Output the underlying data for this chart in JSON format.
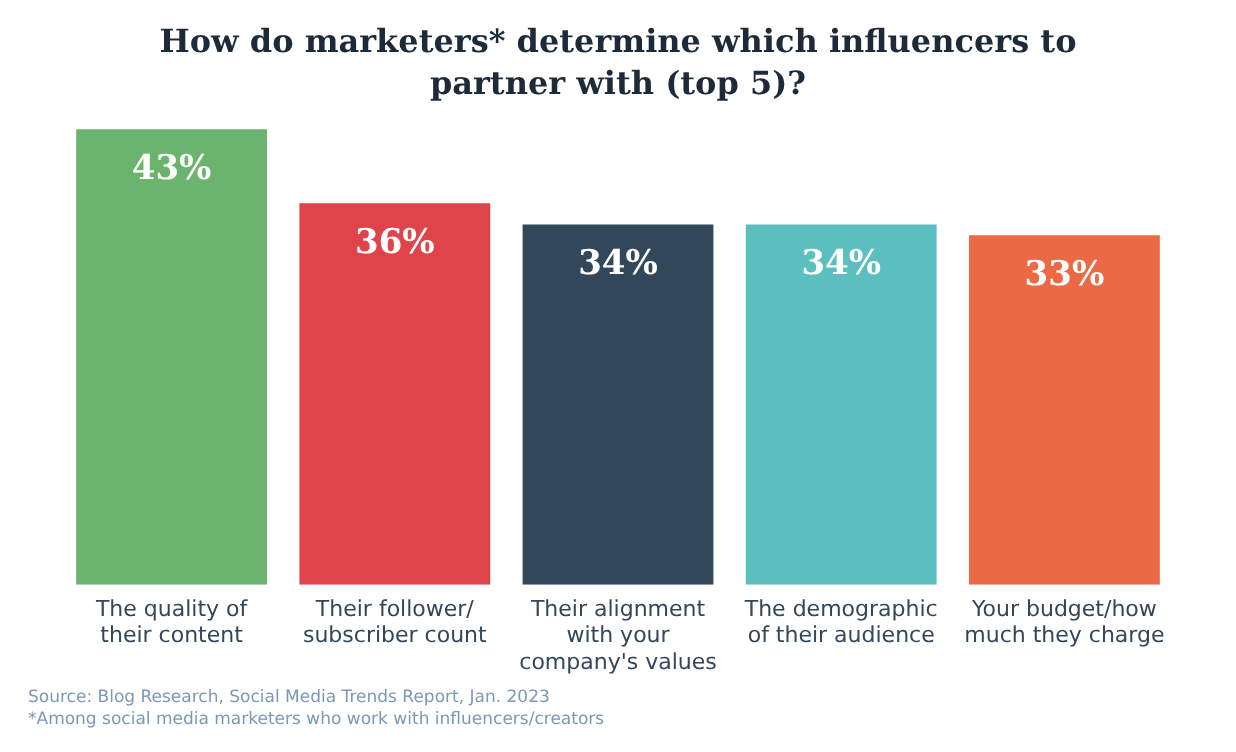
{
  "chart_data": {
    "type": "bar",
    "title": "How do marketers* determine which influencers to partner with (top 5)?",
    "categories": [
      "The quality of their content",
      "Their follower/subscriber count",
      "Their alignment with your company's values",
      "The demographic of their audience",
      "Your budget/how much they charge"
    ],
    "values": [
      43,
      36,
      34,
      34,
      33
    ],
    "colors": [
      "#6ab46e",
      "#e0444b",
      "#33475b",
      "#5bbfc0",
      "#eb6a45"
    ],
    "value_labels": [
      "43%",
      "36%",
      "34%",
      "34%",
      "33%"
    ],
    "grid": false,
    "legend": false,
    "annotations": [
      "Source: Blog Research, Social Media Trends Report, Jan. 2023",
      "*Among social media marketers who work with influencers/creators"
    ]
  }
}
